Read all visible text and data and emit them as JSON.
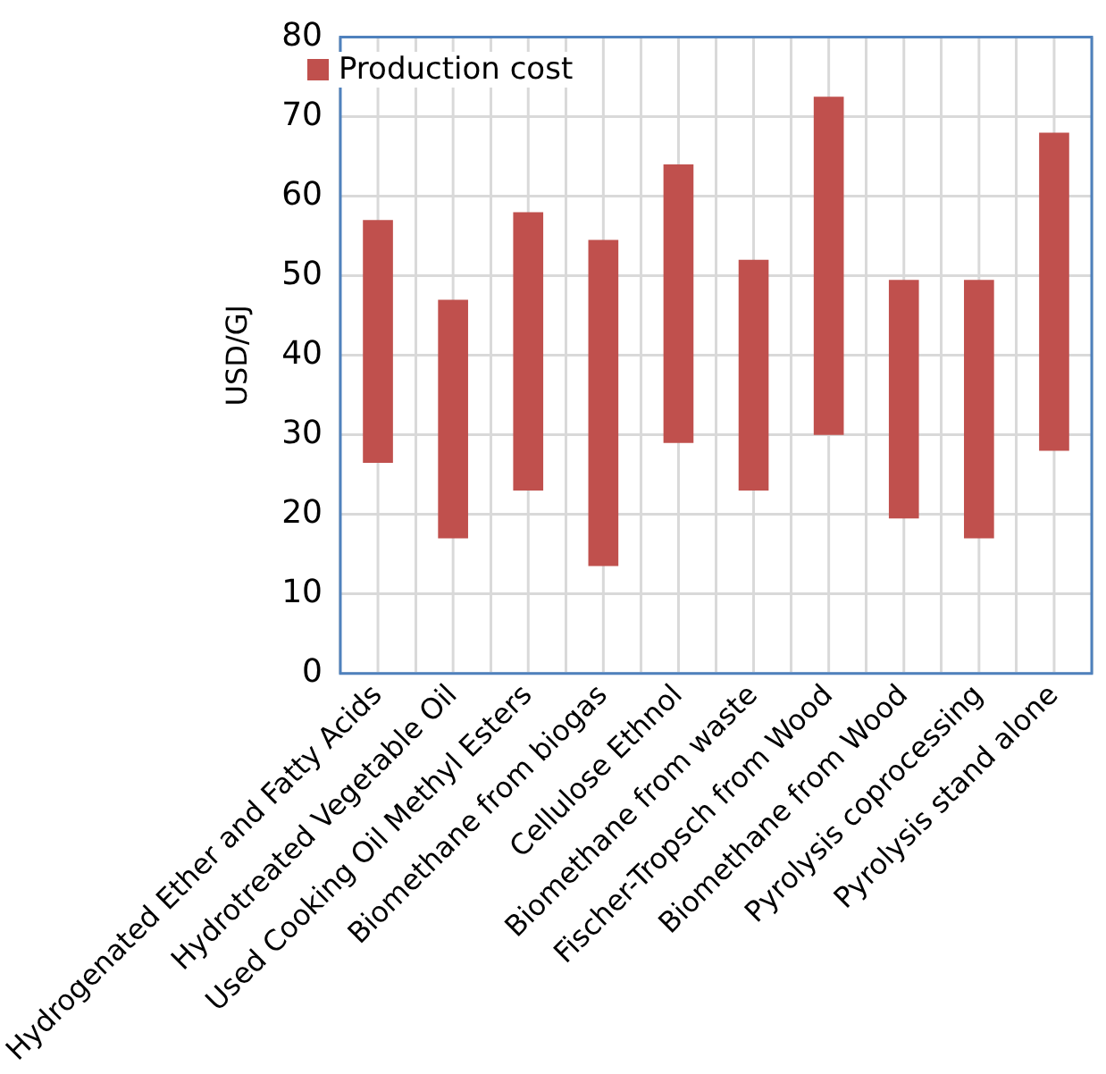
{
  "chart_data": {
    "type": "bar",
    "ylabel": "USD/GJ",
    "categories": [
      "Hydrogenated Ether and Fatty Acids",
      "Hydrotreated Vegetable Oil",
      "Used Cooking Oil Methyl Esters",
      "Biomethane from biogas",
      "Cellulose Ethnol",
      "Biomethane from waste",
      "Fischer-Tropsch from Wood",
      "Biomethane from Wood",
      "Pyrolysis coprocessing",
      "Pyrolysis stand alone"
    ],
    "series": [
      {
        "name": "Production cost",
        "color": "#c0504d",
        "base": [
          26.5,
          17,
          23,
          13.5,
          29,
          23,
          30,
          19.5,
          17,
          28
        ],
        "values": [
          30.5,
          30,
          35,
          41,
          35,
          29,
          42.5,
          30,
          32.5,
          40
        ]
      }
    ],
    "ylim": [
      0,
      80
    ],
    "yticks": [
      0,
      10,
      20,
      30,
      40,
      50,
      60,
      70,
      80
    ],
    "grid": true,
    "legend": "top left"
  }
}
